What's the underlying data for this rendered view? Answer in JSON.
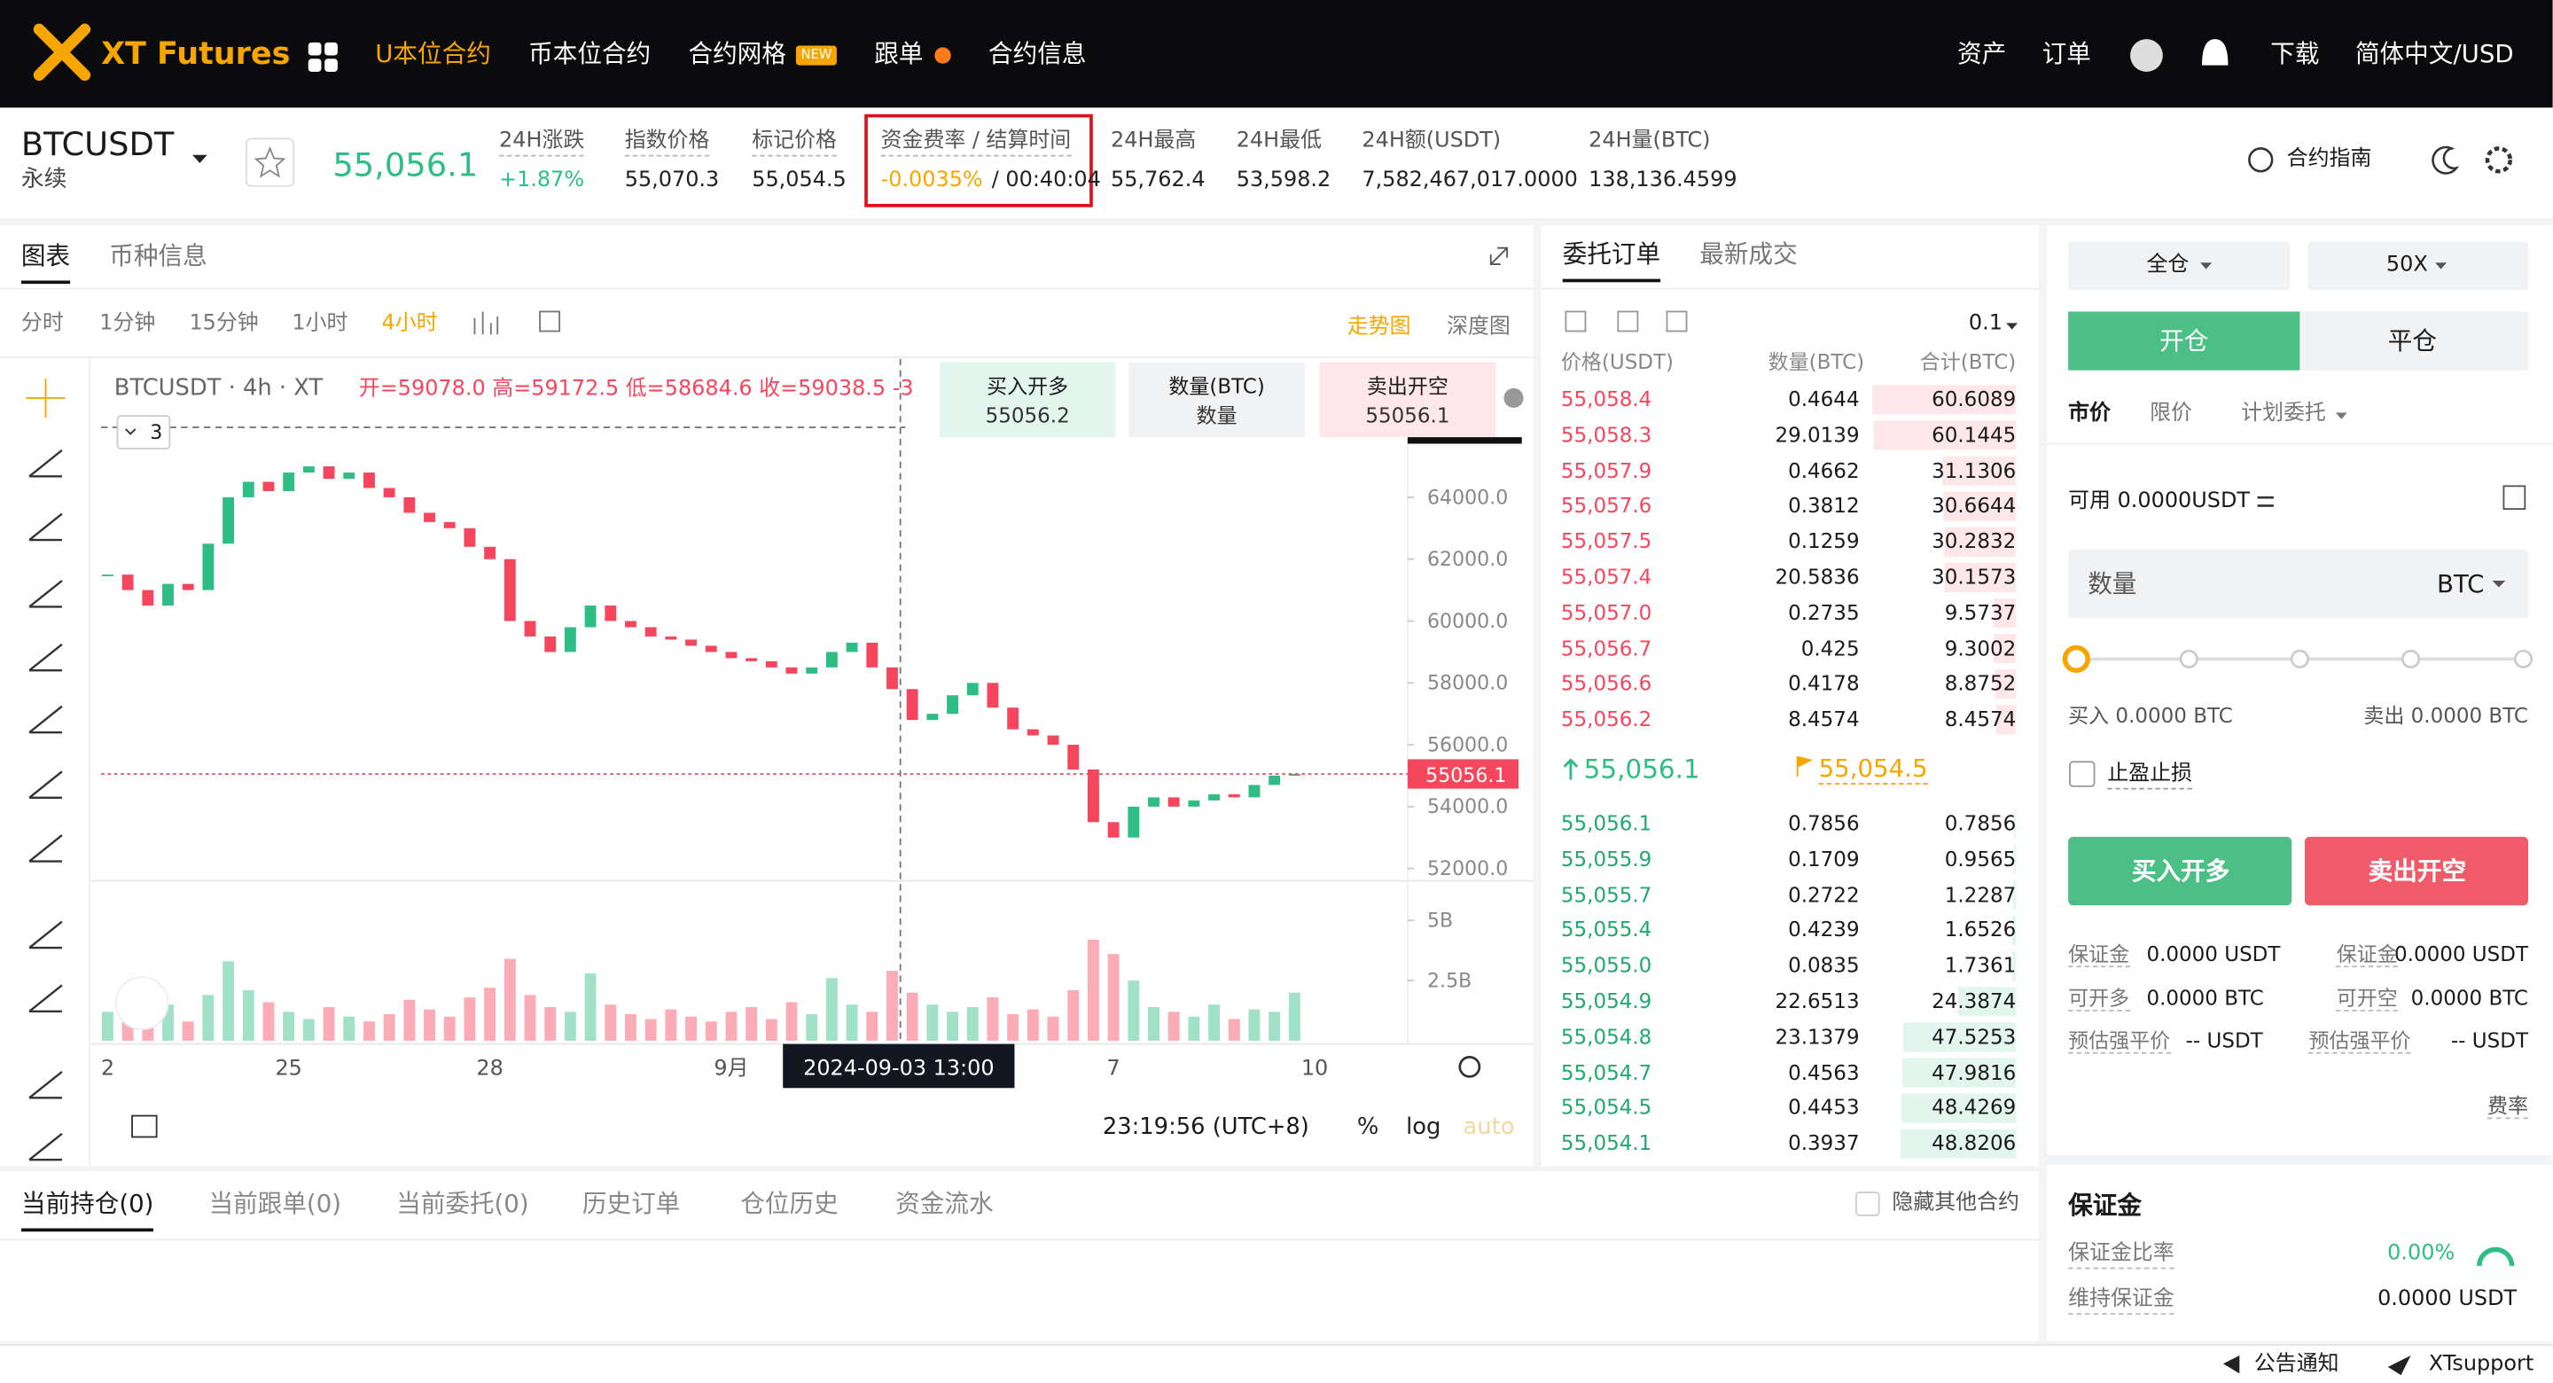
{
  "nav": {
    "logo": "XT Futures",
    "items": [
      "U本位合约",
      "币本位合约",
      "合约网格",
      "跟单",
      "合约信息"
    ],
    "badge": "NEW",
    "right": [
      "资产",
      "订单",
      "下载",
      "简体中文/USD"
    ]
  },
  "ticker": {
    "symbol": "BTCUSDT",
    "contract": "永续",
    "price": "55,056.1",
    "guide": "合约指南",
    "stats": [
      {
        "label": "24H涨跌",
        "value": "+1.87%"
      },
      {
        "label": "指数价格",
        "value": "55,070.3"
      },
      {
        "label": "标记价格",
        "value": "55,054.5"
      },
      {
        "label": "资金费率 / 结算时间",
        "value": "-0.0035%",
        "value2": "/ 00:40:04"
      },
      {
        "label": "24H最高",
        "value": "55,762.4"
      },
      {
        "label": "24H最低",
        "value": "53,598.2"
      },
      {
        "label": "24H额(USDT)",
        "value": "7,582,467,017.0000"
      },
      {
        "label": "24H量(BTC)",
        "value": "138,136.4599"
      }
    ]
  },
  "chart_panel": {
    "tabs": [
      "图表",
      "币种信息"
    ],
    "intervals": [
      "分时",
      "1分钟",
      "15分钟",
      "1小时",
      "4小时"
    ],
    "views": [
      "走势图",
      "深度图"
    ],
    "legend": "BTCUSDT · 4h · XT",
    "ohlc": "开=59078.0 高=59172.5 低=58684.6 收=59038.5 -3",
    "indicator": "3",
    "quick": [
      {
        "label": "买入开多",
        "value": "55056.2"
      },
      {
        "label": "数量(BTC)",
        "value": "数量"
      },
      {
        "label": "卖出开空",
        "value": "55056.1"
      }
    ],
    "crosshair": "2024-09-03  13:00",
    "clock": "23:19:56 (UTC+8)",
    "scale_options": [
      "%",
      "log",
      "auto"
    ]
  },
  "chart_data": {
    "type": "candlestick",
    "up_color": "#2ebd85",
    "down_color": "#f6465d",
    "categories": [
      "2",
      null,
      null,
      null,
      null,
      null,
      null,
      null,
      null,
      "25",
      null,
      null,
      null,
      null,
      null,
      null,
      null,
      null,
      null,
      "28",
      null,
      null,
      null,
      null,
      null,
      null,
      null,
      null,
      null,
      null,
      null,
      "9月",
      null,
      null,
      null,
      null,
      null,
      null,
      null,
      null,
      null,
      null,
      null,
      null,
      null,
      null,
      null,
      null,
      null,
      null,
      "7",
      null,
      null,
      null,
      null,
      null,
      null,
      null,
      null,
      null,
      "10"
    ],
    "closes": [
      61500,
      61000,
      60500,
      61200,
      61000,
      62500,
      64000,
      64500,
      64200,
      64800,
      65000,
      64600,
      64800,
      64300,
      64000,
      63500,
      63200,
      63000,
      62400,
      62000,
      60000,
      59500,
      59000,
      59800,
      60500,
      60000,
      59800,
      59500,
      59400,
      59200,
      59000,
      58800,
      58700,
      58500,
      58300,
      58500,
      59000,
      59300,
      58500,
      57800,
      56800,
      57000,
      57600,
      58000,
      57200,
      56500,
      56300,
      56000,
      55200,
      53500,
      53000,
      54000,
      54300,
      54000,
      54200,
      54400,
      54300,
      54700,
      55000,
      55056.1,
      null
    ],
    "ylim": [
      51600,
      68000
    ],
    "yticks": [
      {
        "value": 64000,
        "label": "64000.0"
      },
      {
        "value": 62000,
        "label": "62000.0"
      },
      {
        "value": 60000,
        "label": "60000.0"
      },
      {
        "value": 58000,
        "label": "58000.0"
      },
      {
        "value": 56000,
        "label": "56000.0"
      },
      {
        "value": 54000,
        "label": "54000.0"
      },
      {
        "value": 52000,
        "label": "52000.0"
      }
    ],
    "last_price": {
      "value": 55056.1,
      "label": "55056.1"
    },
    "volume": {
      "values": [
        1.2,
        0.9,
        1.1,
        1.5,
        0.8,
        1.9,
        3.3,
        2.1,
        1.6,
        1.2,
        0.9,
        1.4,
        1.0,
        0.8,
        1.1,
        1.7,
        1.3,
        1.0,
        1.8,
        2.2,
        3.4,
        1.9,
        1.4,
        1.2,
        2.8,
        1.5,
        1.1,
        0.9,
        1.3,
        1.0,
        0.8,
        1.2,
        1.4,
        0.9,
        1.6,
        1.1,
        2.6,
        1.5,
        1.2,
        2.9,
        2.0,
        1.5,
        1.2,
        1.4,
        1.8,
        1.1,
        1.3,
        1.0,
        2.1,
        4.2,
        3.6,
        2.5,
        1.4,
        1.2,
        1.0,
        1.5,
        0.9,
        1.3,
        1.2,
        2.0,
        null
      ],
      "ylim": [
        0,
        6.3
      ],
      "yticks": [
        {
          "value": 5,
          "label": "5B"
        },
        {
          "value": 2.5,
          "label": "2.5B"
        }
      ]
    }
  },
  "orderbook": {
    "tabs": [
      "委托订单",
      "最新成交"
    ],
    "precision": "0.1",
    "headers": [
      "价格(USDT)",
      "数量(BTC)",
      "合计(BTC)"
    ],
    "asks": [
      [
        "55,058.4",
        "0.4644",
        "60.6089"
      ],
      [
        "55,058.3",
        "29.0139",
        "60.1445"
      ],
      [
        "55,057.9",
        "0.4662",
        "31.1306"
      ],
      [
        "55,057.6",
        "0.3812",
        "30.6644"
      ],
      [
        "55,057.5",
        "0.1259",
        "30.2832"
      ],
      [
        "55,057.4",
        "20.5836",
        "30.1573"
      ],
      [
        "55,057.0",
        "0.2735",
        "9.5737"
      ],
      [
        "55,056.7",
        "0.425",
        "9.3002"
      ],
      [
        "55,056.6",
        "0.4178",
        "8.8752"
      ],
      [
        "55,056.2",
        "8.4574",
        "8.4574"
      ]
    ],
    "last": "55,056.1",
    "mark": "55,054.5",
    "bids": [
      [
        "55,056.1",
        "0.7856",
        "0.7856"
      ],
      [
        "55,055.9",
        "0.1709",
        "0.9565"
      ],
      [
        "55,055.7",
        "0.2722",
        "1.2287"
      ],
      [
        "55,055.4",
        "0.4239",
        "1.6526"
      ],
      [
        "55,055.0",
        "0.0835",
        "1.7361"
      ],
      [
        "55,054.9",
        "22.6513",
        "24.3874"
      ],
      [
        "55,054.8",
        "23.1379",
        "47.5253"
      ],
      [
        "55,054.7",
        "0.4563",
        "47.9816"
      ],
      [
        "55,054.5",
        "0.4453",
        "48.4269"
      ],
      [
        "55,054.1",
        "0.3937",
        "48.8206"
      ]
    ]
  },
  "trade": {
    "margin_mode": "全仓",
    "leverage": "50X",
    "sides": [
      "开仓",
      "平仓"
    ],
    "order_types": [
      "市价",
      "限价",
      "计划委托"
    ],
    "available": "可用 0.0000USDT",
    "qty_label": "数量",
    "qty_unit": "BTC",
    "buy_amount": "买入 0.0000 BTC",
    "sell_amount": "卖出 0.0000 BTC",
    "tpsl": "止盈止损",
    "buy_btn": "买入开多",
    "sell_btn": "卖出开空",
    "info_left": [
      [
        "保证金",
        "0.0000 USDT"
      ],
      [
        "可开多",
        "0.0000 BTC"
      ],
      [
        "预估强平价",
        "-- USDT"
      ]
    ],
    "info_right": [
      [
        "保证金",
        "0.0000 USDT"
      ],
      [
        "可开空",
        "0.0000 BTC"
      ],
      [
        "预估强平价",
        "-- USDT"
      ]
    ],
    "fee": "费率",
    "margin_title": "保证金",
    "margin_ratio_label": "保证金比率",
    "margin_ratio": "0.00%",
    "maint_label": "维持保证金",
    "maint": "0.0000 USDT"
  },
  "positions": {
    "tabs": [
      "当前持仓(0)",
      "当前跟单(0)",
      "当前委托(0)",
      "历史订单",
      "仓位历史",
      "资金流水"
    ],
    "hide_other": "隐藏其他合约"
  },
  "footer": {
    "links": [
      "公告通知",
      "XTsupport"
    ]
  }
}
